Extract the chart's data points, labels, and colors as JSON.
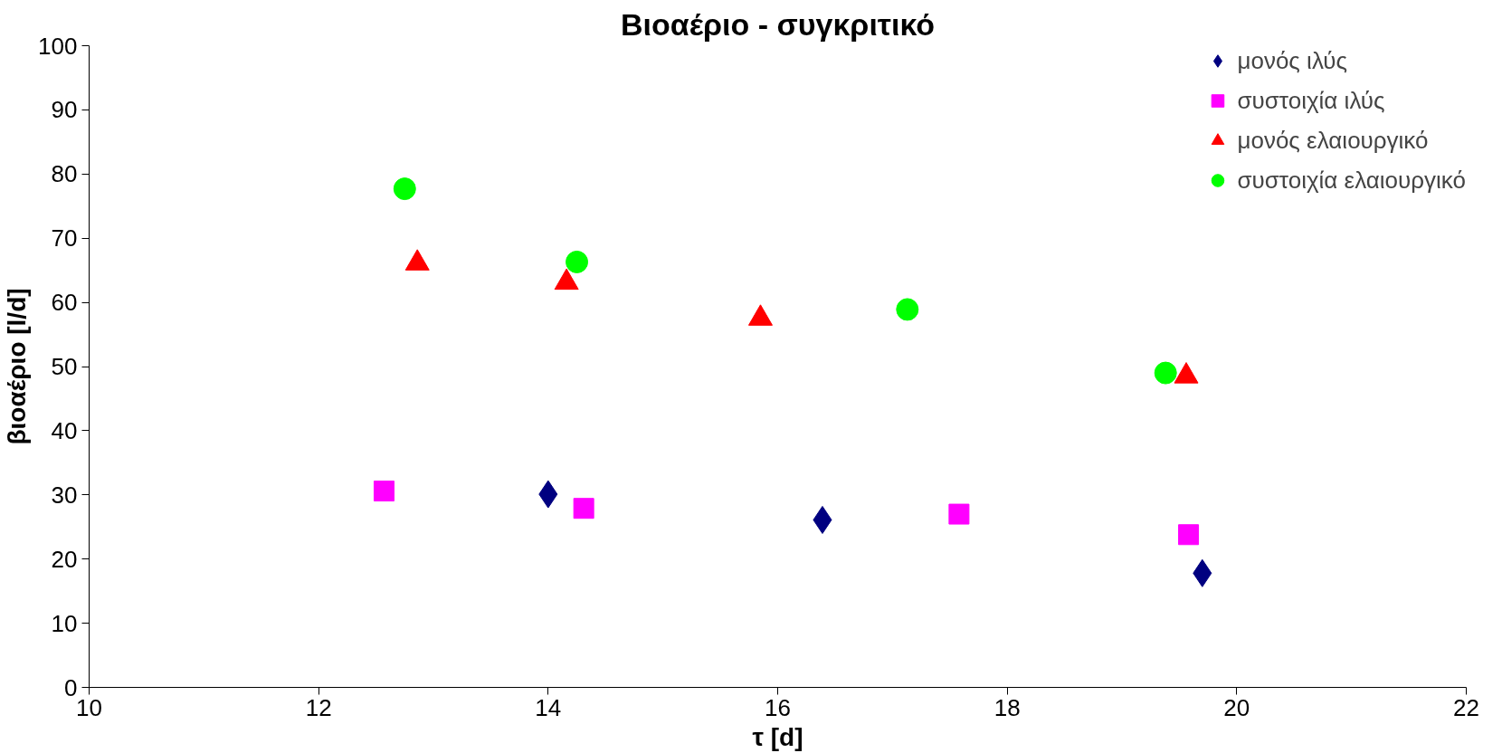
{
  "chart_data": {
    "type": "scatter",
    "title": "Βιοαέριο - συγκριτικό",
    "xlabel": "τ [d]",
    "ylabel": "βιοαέριο [l/d]",
    "xlim": [
      10,
      22
    ],
    "xticks": [
      10,
      12,
      14,
      16,
      18,
      20,
      22
    ],
    "ylim": [
      0,
      100
    ],
    "yticks": [
      0,
      10,
      20,
      30,
      40,
      50,
      60,
      70,
      80,
      90,
      100
    ],
    "grid": false,
    "legend": "top right",
    "series": [
      {
        "name": "μονός ιλύς",
        "color": "#000080",
        "marker": "diamond",
        "x": [
          14.0,
          16.39,
          19.7
        ],
        "values": [
          30.1,
          26.1,
          17.8
        ]
      },
      {
        "name": "συστοιχία ιλύς",
        "color": "#ff00ff",
        "marker": "square",
        "x": [
          12.57,
          14.31,
          17.58,
          19.58
        ],
        "values": [
          30.6,
          27.9,
          27.0,
          23.8
        ]
      },
      {
        "name": "μονός ελαιουργικό",
        "color": "#ff0000",
        "marker": "triangle",
        "x": [
          12.86,
          14.16,
          15.85,
          19.56
        ],
        "values": [
          66.1,
          63.1,
          57.5,
          48.5
        ]
      },
      {
        "name": "συστοιχία ελαιουργικό",
        "color": "#00ff00",
        "marker": "circle",
        "x": [
          12.75,
          14.25,
          17.13,
          19.38
        ],
        "values": [
          77.7,
          66.3,
          58.9,
          49.0
        ]
      }
    ]
  }
}
